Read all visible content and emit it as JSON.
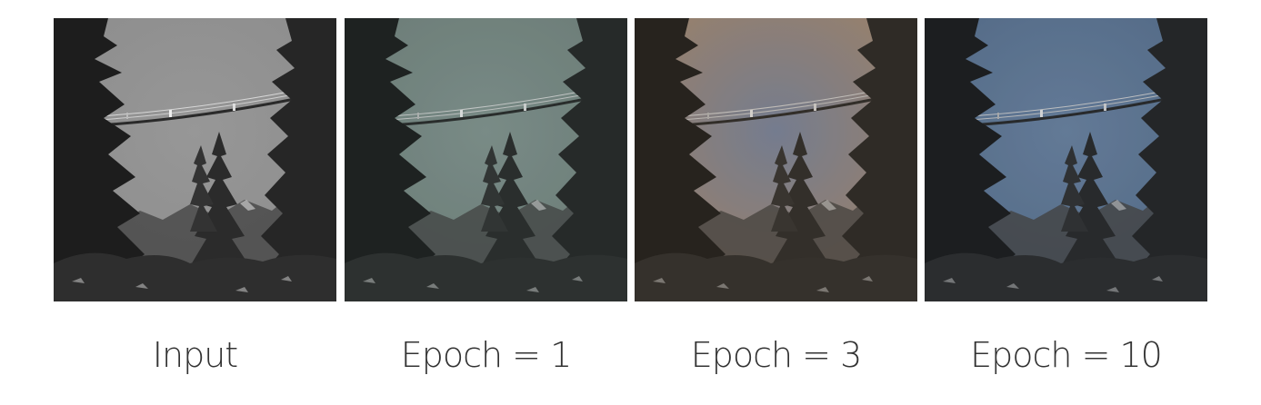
{
  "figure": {
    "panels": [
      {
        "caption": "Input",
        "sky_color": "#8d8d8d",
        "sky_center": "#979797",
        "tint": "#000000",
        "tint_opacity": 0.0
      },
      {
        "caption": "Epoch = 1",
        "sky_color": "#76847f",
        "sky_center": "#849490",
        "tint": "#2b4a44",
        "tint_opacity": 0.12
      },
      {
        "caption": "Epoch = 3",
        "sky_color": "#a98f78",
        "sky_center": "#7b89a6",
        "tint": "#5a4128",
        "tint_opacity": 0.18
      },
      {
        "caption": "Epoch = 10",
        "sky_color": "#5d7694",
        "sky_center": "#6f87a6",
        "tint": "#1d2c3a",
        "tint_opacity": 0.14
      }
    ]
  }
}
